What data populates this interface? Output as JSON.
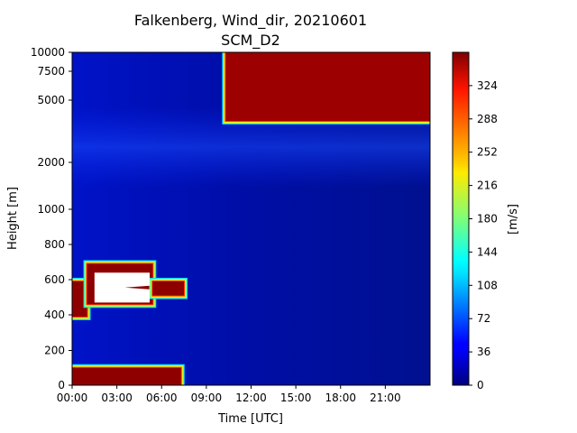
{
  "chart_data": {
    "type": "heatmap",
    "title": "Falkenberg, Wind_dir, 20210601",
    "subtitle": "SCM_D2",
    "xlabel": "Time [UTC]",
    "ylabel": "Height [m]",
    "x_ticks": [
      "00:00",
      "03:00",
      "06:00",
      "09:00",
      "12:00",
      "15:00",
      "18:00",
      "21:00"
    ],
    "x_tick_hours": [
      0,
      3,
      6,
      9,
      12,
      15,
      18,
      21
    ],
    "xlim_hours": [
      0,
      24
    ],
    "y_ticks": [
      "0",
      "200",
      "400",
      "600",
      "800",
      "1000",
      "2000",
      "5000",
      "7500",
      "10000"
    ],
    "y_tick_values": [
      0,
      200,
      400,
      600,
      800,
      1000,
      2000,
      5000,
      7500,
      10000
    ],
    "ylim": [
      0,
      10000
    ],
    "y_scale": "piecewise (linear 0–1000 m, compressed above 1000 m)",
    "colorbar": {
      "label": "[m/s]",
      "ticks": [
        "0",
        "36",
        "72",
        "108",
        "144",
        "180",
        "216",
        "252",
        "288",
        "324"
      ],
      "tick_values": [
        0,
        36,
        72,
        108,
        144,
        180,
        216,
        252,
        288,
        324
      ],
      "range": [
        0,
        360
      ],
      "colormap": "jet"
    },
    "background_value": 15,
    "regions": [
      {
        "hour_start": 0.0,
        "hour_end": 7.3,
        "height_bottom": 0,
        "height_top": 100,
        "value": 355
      },
      {
        "hour_start": 0.0,
        "hour_end": 1.0,
        "height_bottom": 390,
        "height_top": 590,
        "value": 355
      },
      {
        "hour_start": 1.0,
        "hour_end": 5.4,
        "height_bottom": 460,
        "height_top": 690,
        "value": 355
      },
      {
        "hour_start": 5.4,
        "hour_end": 7.5,
        "height_bottom": 510,
        "height_top": 590,
        "value": 355
      },
      {
        "hour_start": 10.3,
        "hour_end": 24.0,
        "height_bottom": 4000,
        "height_top": 10000,
        "value": 350
      }
    ],
    "missing_regions": [
      {
        "hour_start": 1.5,
        "hour_end": 5.2,
        "height_bottom": 470,
        "height_top": 640
      }
    ]
  }
}
